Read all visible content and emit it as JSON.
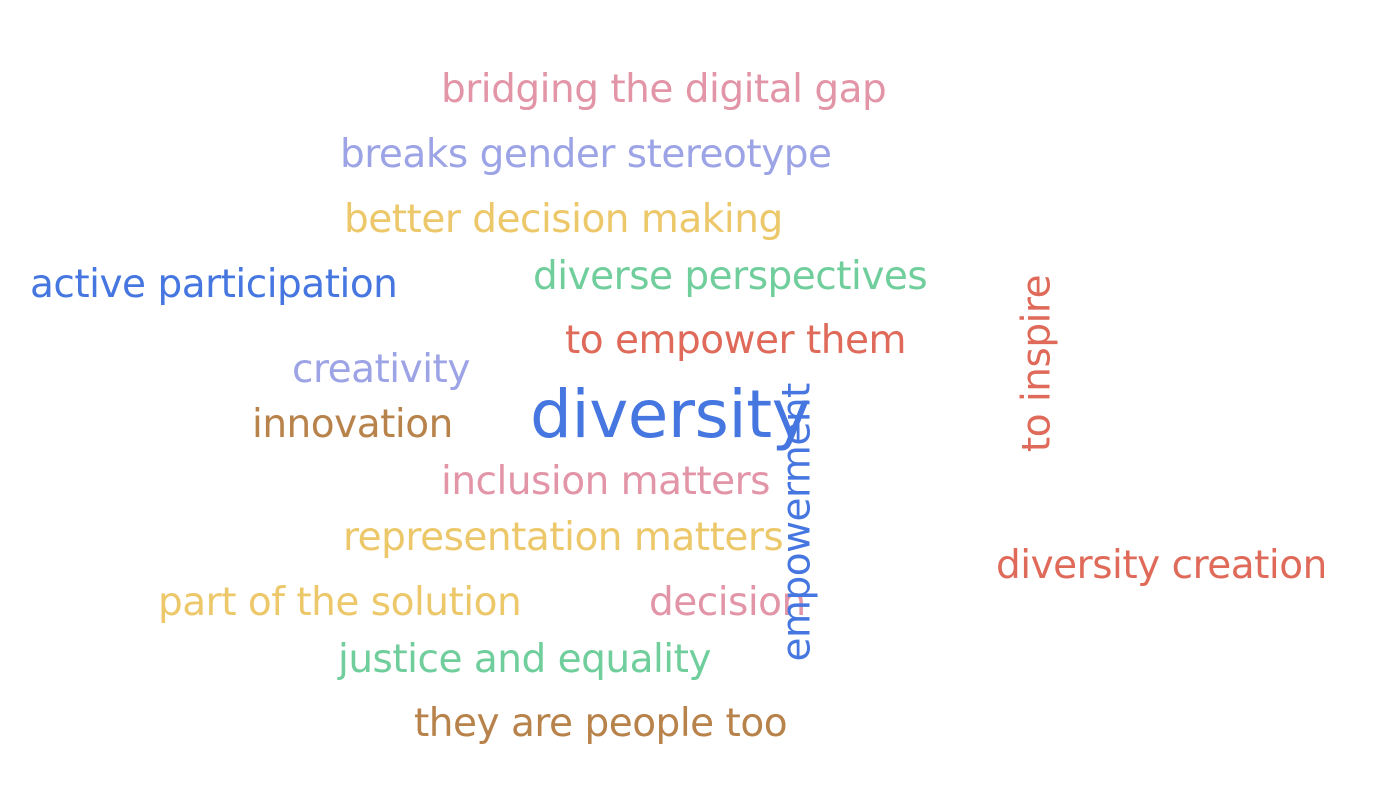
{
  "words": [
    {
      "text": "bridging the digital gap",
      "color": "#e395a8"
    },
    {
      "text": "breaks gender stereotype",
      "color": "#9da4e6"
    },
    {
      "text": "better decision making",
      "color": "#ecc86a"
    },
    {
      "text": "active participation",
      "color": "#4676e0"
    },
    {
      "text": "diverse perspectives",
      "color": "#6fce9b"
    },
    {
      "text": "to empower them",
      "color": "#df6a59"
    },
    {
      "text": "creativity",
      "color": "#9da4e6"
    },
    {
      "text": "innovation",
      "color": "#b8824b"
    },
    {
      "text": "diversity",
      "color": "#4676e0"
    },
    {
      "text": "inclusion matters",
      "color": "#e395a8"
    },
    {
      "text": "representation matters",
      "color": "#ecc86a"
    },
    {
      "text": "part of the solution",
      "color": "#ecc86a"
    },
    {
      "text": "decision",
      "color": "#e395a8"
    },
    {
      "text": "justice and equality",
      "color": "#6fce9b"
    },
    {
      "text": "they are people too",
      "color": "#b8824b"
    },
    {
      "text": "diversity creation",
      "color": "#df6a59"
    },
    {
      "text": "empowerment",
      "color": "#4676e0"
    },
    {
      "text": "to inspire",
      "color": "#df6a59"
    }
  ]
}
